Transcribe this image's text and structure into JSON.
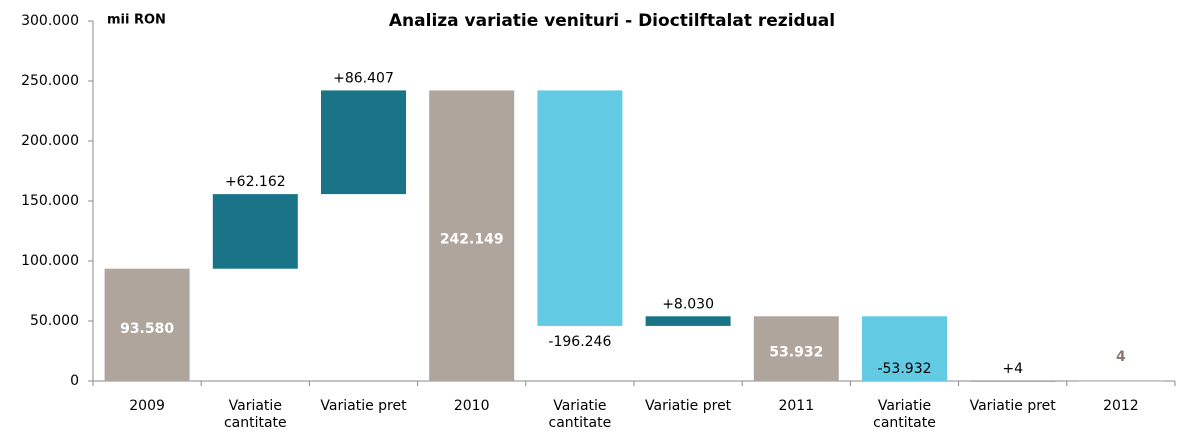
{
  "chart_data": {
    "type": "waterfall",
    "title": "Analiza variatie venituri - Dioctilftalat rezidual",
    "y_axis_label": "mii RON",
    "categories": [
      "2009",
      "Variatie cantitate",
      "Variatie pret",
      "2010",
      "Variatie cantitate",
      "Variatie pret",
      "2011",
      "Variatie cantitate",
      "Variatie pret",
      "2012"
    ],
    "measure": [
      "total",
      "relative",
      "relative",
      "total",
      "relative",
      "relative",
      "total",
      "relative",
      "relative",
      "total"
    ],
    "values": [
      93580,
      62162,
      86407,
      242149,
      -196246,
      8030,
      53932,
      -53932,
      4,
      4
    ],
    "value_labels": [
      "93.580",
      "+62.162",
      "+86.407",
      "242.149",
      "-196.246",
      "+8.030",
      "53.932",
      "-53.932",
      "+4",
      "4"
    ],
    "colors": {
      "total": "#b0a59c",
      "increase": "#1a7487",
      "decrease": "#62cae3"
    },
    "ylim": [
      0,
      300000
    ],
    "yticks": [
      0,
      {
        "value": 50000,
        "label": "50.000"
      },
      {
        "value": 100000,
        "label": "100.000"
      },
      {
        "value": 150000,
        "label": "150.000"
      },
      {
        "value": 200000,
        "label": "200.000"
      },
      {
        "value": 250000,
        "label": "250.000"
      },
      {
        "value": 300000,
        "label": "300.000"
      }
    ]
  }
}
